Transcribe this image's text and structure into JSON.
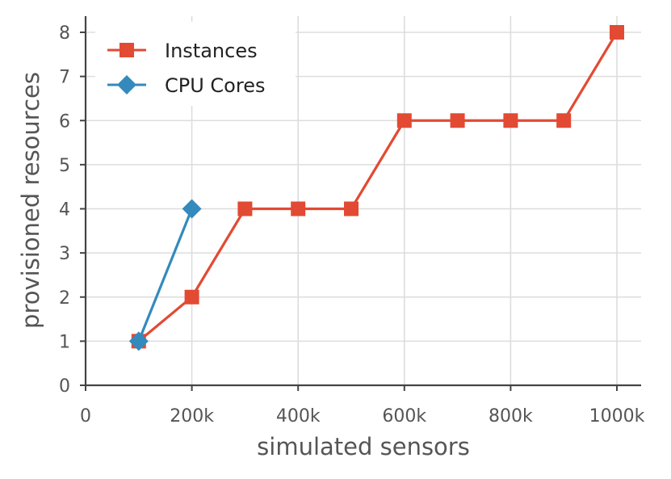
{
  "chart_data": {
    "type": "line",
    "title": "",
    "xlabel": "simulated sensors",
    "ylabel": "provisioned resources",
    "xlim": [
      0,
      1050000
    ],
    "ylim": [
      0,
      8.35
    ],
    "xticks": [
      0,
      200000,
      400000,
      600000,
      800000,
      1000000
    ],
    "xtick_labels": [
      "0",
      "200k",
      "400k",
      "600k",
      "800k",
      "1000k"
    ],
    "yticks": [
      0,
      1,
      2,
      3,
      4,
      5,
      6,
      7,
      8
    ],
    "ytick_labels": [
      "0",
      "1",
      "2",
      "3",
      "4",
      "5",
      "6",
      "7",
      "8"
    ],
    "grid": true,
    "legend_position": "top-left",
    "series": [
      {
        "name": "Instances",
        "color": "#e24a33",
        "marker": "square",
        "x": [
          100000,
          200000,
          300000,
          400000,
          500000,
          600000,
          700000,
          800000,
          900000,
          1000000
        ],
        "values": [
          1,
          2,
          4,
          4,
          4,
          6,
          6,
          6,
          6,
          8
        ]
      },
      {
        "name": "CPU Cores",
        "color": "#348abd",
        "marker": "diamond",
        "x": [
          100000,
          200000
        ],
        "values": [
          1,
          4
        ]
      }
    ]
  }
}
